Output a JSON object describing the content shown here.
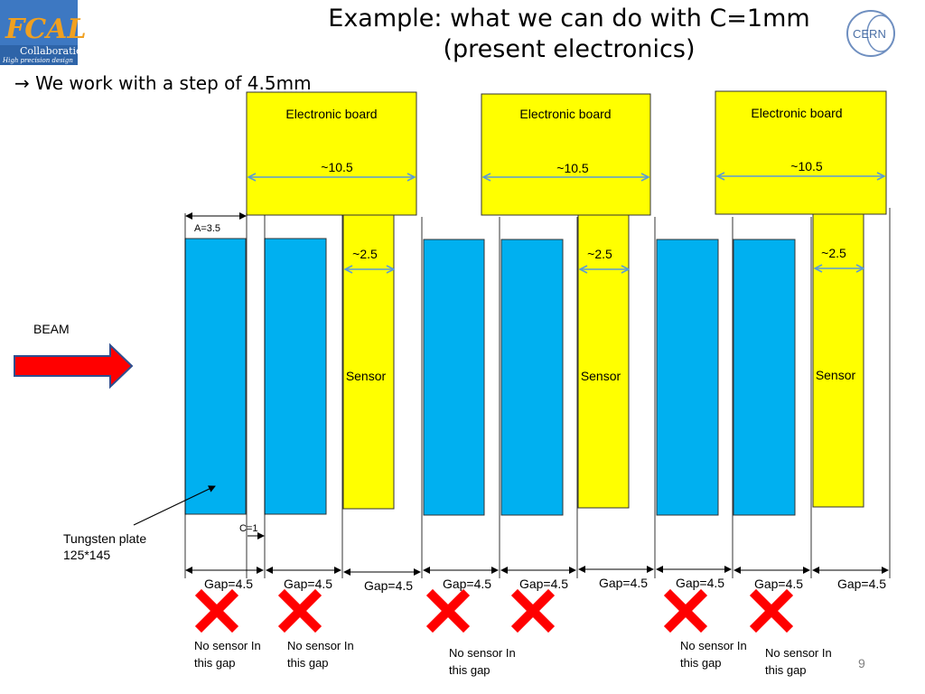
{
  "slide": {
    "title_line1": "Example: what we can do with C=1mm",
    "title_line2": "(present electronics)",
    "subtitle": "→ We work with a step of 4.5mm",
    "page_number": "9"
  },
  "logos": {
    "left": {
      "big_text": "FCAL",
      "line1": "Collaboration",
      "line2": "High precision design"
    },
    "right": {
      "text": "CERN"
    }
  },
  "diagram": {
    "board_label": "Electronic board",
    "board_width_label": "~10.5",
    "sensor_label": "Sensor",
    "sensor_width_label": "~2.5",
    "a_label": "A=3.5",
    "c_label": "C=1",
    "beam_label": "BEAM",
    "tungsten_label_line1": "Tungsten plate",
    "tungsten_label_line2": "125*145",
    "gap_labels": [
      "Gap=4.5",
      "Gap=4.5",
      "Gap=4.5",
      "Gap=4.5",
      "Gap=4.5",
      "Gap=4.5",
      "Gap=4.5",
      "Gap=4.5",
      "Gap=4.5"
    ],
    "no_sensor_line1": "No sensor In",
    "no_sensor_line2": "this gap",
    "colors": {
      "board": "#ffff00",
      "plate": "#00b0f0",
      "dim_arrow": "#5b9bd5",
      "cross": "#ff0000",
      "beam_arrow": "#ff0000"
    }
  }
}
